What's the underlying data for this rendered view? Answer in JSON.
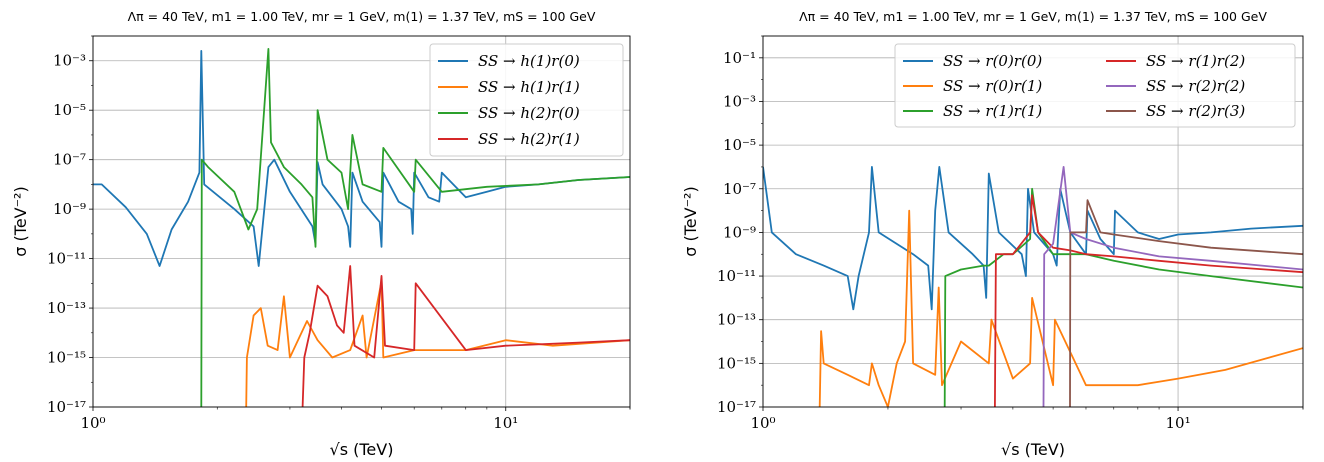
{
  "chart_data": [
    {
      "type": "line",
      "title": "Λπ = 40 TeV, m1 = 1.00 TeV, mr = 1 GeV, m(1) = 1.37 TeV, mS = 100 GeV",
      "xlabel": "√s (TeV)",
      "ylabel": "σ (TeV⁻²)",
      "xscale": "log",
      "yscale": "log",
      "xlim": [
        1,
        20
      ],
      "ylim": [
        1e-17,
        0.01
      ],
      "xticks": [
        {
          "v": 1,
          "label": "10⁰"
        },
        {
          "v": 10,
          "label": "10¹"
        }
      ],
      "yticks": [
        {
          "v": -17,
          "label": "10⁻¹⁷"
        },
        {
          "v": -15,
          "label": "10⁻¹⁵"
        },
        {
          "v": -13,
          "label": "10⁻¹³"
        },
        {
          "v": -11,
          "label": "10⁻¹¹"
        },
        {
          "v": -9,
          "label": "10⁻⁹"
        },
        {
          "v": -7,
          "label": "10⁻⁷"
        },
        {
          "v": -5,
          "label": "10⁻⁵"
        },
        {
          "v": -3,
          "label": "10⁻³"
        }
      ],
      "grid": true,
      "legend": "top-right",
      "legend_cols": 1,
      "series": [
        {
          "name": "SS → h(1)r(0)",
          "color": "#1f77b4",
          "points": [
            [
              1.0,
              1e-08
            ],
            [
              1.05,
              1e-08
            ],
            [
              1.2,
              1.2e-09
            ],
            [
              1.35,
              1e-10
            ],
            [
              1.45,
              5e-12
            ],
            [
              1.55,
              1.5e-10
            ],
            [
              1.7,
              2e-09
            ],
            [
              1.81,
              3e-08
            ],
            [
              1.83,
              0.0025
            ],
            [
              1.86,
              1e-08
            ],
            [
              2.2,
              1e-09
            ],
            [
              2.45,
              2e-10
            ],
            [
              2.52,
              5e-12
            ],
            [
              2.6,
              1e-09
            ],
            [
              2.66,
              5e-08
            ],
            [
              2.75,
              1e-07
            ],
            [
              3.0,
              5e-09
            ],
            [
              3.4,
              2e-10
            ],
            [
              3.46,
              4e-11
            ],
            [
              3.5,
              8e-08
            ],
            [
              3.6,
              1e-08
            ],
            [
              4.0,
              1e-09
            ],
            [
              4.15,
              2e-10
            ],
            [
              4.2,
              3e-11
            ],
            [
              4.25,
              3e-08
            ],
            [
              4.5,
              2e-09
            ],
            [
              4.95,
              3e-10
            ],
            [
              5.0,
              3e-11
            ],
            [
              5.05,
              3e-08
            ],
            [
              5.5,
              2e-09
            ],
            [
              5.9,
              1e-09
            ],
            [
              5.95,
              1e-10
            ],
            [
              6.0,
              3e-08
            ],
            [
              6.5,
              3e-09
            ],
            [
              6.9,
              2e-09
            ],
            [
              7.0,
              3e-08
            ],
            [
              8.0,
              3e-09
            ],
            [
              9.0,
              5e-09
            ],
            [
              10,
              8e-09
            ],
            [
              12,
              1e-08
            ],
            [
              15,
              1.5e-08
            ],
            [
              20,
              2e-08
            ]
          ]
        },
        {
          "name": "SS → h(1)r(1)",
          "color": "#ff7f0e",
          "points": [
            [
              2.35,
              1e-17
            ],
            [
              2.36,
              1e-15
            ],
            [
              2.45,
              5e-14
            ],
            [
              2.55,
              1e-13
            ],
            [
              2.65,
              3e-15
            ],
            [
              2.8,
              2e-15
            ],
            [
              2.9,
              3e-13
            ],
            [
              3.0,
              1e-15
            ],
            [
              3.3,
              3e-14
            ],
            [
              3.5,
              5e-15
            ],
            [
              3.8,
              1e-15
            ],
            [
              4.2,
              2e-15
            ],
            [
              4.5,
              5e-14
            ],
            [
              4.6,
              1e-15
            ],
            [
              5.0,
              1.2e-12
            ],
            [
              5.05,
              1e-15
            ],
            [
              6.0,
              2e-15
            ],
            [
              8.0,
              2e-15
            ],
            [
              10,
              5e-15
            ],
            [
              13,
              3e-15
            ],
            [
              20,
              5e-15
            ]
          ]
        },
        {
          "name": "SS → h(2)r(0)",
          "color": "#2ca02c",
          "points": [
            [
              1.83,
              1e-17
            ],
            [
              1.835,
              1e-07
            ],
            [
              1.9,
              5e-08
            ],
            [
              2.2,
              5e-09
            ],
            [
              2.38,
              1.5e-10
            ],
            [
              2.5,
              1e-09
            ],
            [
              2.66,
              0.003
            ],
            [
              2.7,
              5e-07
            ],
            [
              2.9,
              5e-08
            ],
            [
              3.2,
              1e-08
            ],
            [
              3.4,
              3e-09
            ],
            [
              3.46,
              3e-11
            ],
            [
              3.5,
              1e-05
            ],
            [
              3.7,
              1e-07
            ],
            [
              4.0,
              3e-08
            ],
            [
              4.15,
              1e-09
            ],
            [
              4.25,
              1e-06
            ],
            [
              4.5,
              1e-08
            ],
            [
              5.0,
              5e-09
            ],
            [
              5.05,
              3e-07
            ],
            [
              6.0,
              5e-09
            ],
            [
              6.05,
              1e-07
            ],
            [
              7.0,
              5e-09
            ],
            [
              9.0,
              8e-09
            ],
            [
              12,
              1e-08
            ],
            [
              15,
              1.5e-08
            ],
            [
              20,
              2e-08
            ]
          ]
        },
        {
          "name": "SS → h(2)r(1)",
          "color": "#d62728",
          "points": [
            [
              3.22,
              1e-17
            ],
            [
              3.25,
              1e-15
            ],
            [
              3.35,
              1e-14
            ],
            [
              3.5,
              8e-13
            ],
            [
              3.7,
              3e-13
            ],
            [
              3.9,
              2e-14
            ],
            [
              4.05,
              1e-14
            ],
            [
              4.2,
              5e-12
            ],
            [
              4.3,
              3e-15
            ],
            [
              4.8,
              1e-15
            ],
            [
              5.0,
              2e-12
            ],
            [
              5.1,
              3e-15
            ],
            [
              6.0,
              2e-15
            ],
            [
              6.05,
              1e-12
            ],
            [
              8.0,
              2e-15
            ],
            [
              10,
              3e-15
            ],
            [
              15,
              4e-15
            ],
            [
              20,
              5e-15
            ]
          ]
        }
      ]
    },
    {
      "type": "line",
      "title": "Λπ = 40 TeV, m1 = 1.00 TeV, mr = 1 GeV, m(1) = 1.37 TeV, mS = 100 GeV",
      "xlabel": "√s (TeV)",
      "ylabel": "σ (TeV⁻²)",
      "xscale": "log",
      "yscale": "log",
      "xlim": [
        1,
        20
      ],
      "ylim": [
        1e-17,
        1
      ],
      "xticks": [
        {
          "v": 1,
          "label": "10⁰"
        },
        {
          "v": 10,
          "label": "10¹"
        }
      ],
      "yticks": [
        {
          "v": -17,
          "label": "10⁻¹⁷"
        },
        {
          "v": -15,
          "label": "10⁻¹⁵"
        },
        {
          "v": -13,
          "label": "10⁻¹³"
        },
        {
          "v": -11,
          "label": "10⁻¹¹"
        },
        {
          "v": -9,
          "label": "10⁻⁹"
        },
        {
          "v": -7,
          "label": "10⁻⁷"
        },
        {
          "v": -5,
          "label": "10⁻⁵"
        },
        {
          "v": -3,
          "label": "10⁻³"
        },
        {
          "v": -1,
          "label": "10⁻¹"
        }
      ],
      "grid": true,
      "legend": "top-right",
      "legend_cols": 2,
      "series": [
        {
          "name": "SS → r(0)r(0)",
          "color": "#1f77b4",
          "points": [
            [
              1.0,
              1e-06
            ],
            [
              1.05,
              1e-09
            ],
            [
              1.2,
              1e-10
            ],
            [
              1.4,
              3e-11
            ],
            [
              1.6,
              1e-11
            ],
            [
              1.65,
              3e-13
            ],
            [
              1.7,
              1e-11
            ],
            [
              1.8,
              1e-09
            ],
            [
              1.83,
              1e-06
            ],
            [
              1.9,
              1e-09
            ],
            [
              2.3,
              1e-10
            ],
            [
              2.5,
              3e-11
            ],
            [
              2.55,
              3e-13
            ],
            [
              2.6,
              1e-08
            ],
            [
              2.66,
              1e-06
            ],
            [
              2.8,
              1e-09
            ],
            [
              3.2,
              1e-10
            ],
            [
              3.4,
              3e-11
            ],
            [
              3.45,
              1e-12
            ],
            [
              3.5,
              5e-07
            ],
            [
              3.7,
              1e-09
            ],
            [
              4.2,
              1e-10
            ],
            [
              4.3,
              1e-11
            ],
            [
              4.35,
              1e-07
            ],
            [
              4.5,
              1e-09
            ],
            [
              5.0,
              1e-10
            ],
            [
              5.1,
              3e-11
            ],
            [
              5.2,
              1e-07
            ],
            [
              5.5,
              1e-09
            ],
            [
              6.0,
              1e-10
            ],
            [
              6.05,
              1e-08
            ],
            [
              6.5,
              5e-10
            ],
            [
              7.0,
              1e-10
            ],
            [
              7.05,
              1e-08
            ],
            [
              8.0,
              1e-09
            ],
            [
              9.0,
              5e-10
            ],
            [
              10,
              8e-10
            ],
            [
              12,
              1e-09
            ],
            [
              15,
              1.5e-09
            ],
            [
              20,
              2e-09
            ]
          ]
        },
        {
          "name": "SS → r(0)r(1)",
          "color": "#ff7f0e",
          "points": [
            [
              1.37,
              1e-17
            ],
            [
              1.38,
              3e-14
            ],
            [
              1.4,
              1e-15
            ],
            [
              1.6,
              3e-16
            ],
            [
              1.8,
              1e-16
            ],
            [
              1.83,
              1e-15
            ],
            [
              1.9,
              1e-16
            ],
            [
              2.0,
              1e-17
            ],
            [
              2.1,
              1e-15
            ],
            [
              2.2,
              1e-14
            ],
            [
              2.25,
              1e-08
            ],
            [
              2.3,
              1e-15
            ],
            [
              2.6,
              3e-16
            ],
            [
              2.65,
              3e-12
            ],
            [
              2.7,
              1e-16
            ],
            [
              3.0,
              1e-14
            ],
            [
              3.5,
              1e-15
            ],
            [
              3.55,
              1e-13
            ],
            [
              4.0,
              2e-16
            ],
            [
              4.4,
              1e-15
            ],
            [
              4.45,
              1e-12
            ],
            [
              5.0,
              1e-16
            ],
            [
              5.05,
              1e-13
            ],
            [
              6.0,
              1e-16
            ],
            [
              8.0,
              1e-16
            ],
            [
              10,
              2e-16
            ],
            [
              13,
              5e-16
            ],
            [
              20,
              5e-15
            ]
          ]
        },
        {
          "name": "SS → r(1)r(1)",
          "color": "#2ca02c",
          "points": [
            [
              2.74,
              1e-17
            ],
            [
              2.75,
              1e-11
            ],
            [
              3.0,
              2e-11
            ],
            [
              3.4,
              3e-11
            ],
            [
              3.5,
              3e-11
            ],
            [
              3.8,
              1e-10
            ],
            [
              4.0,
              1e-10
            ],
            [
              4.4,
              5e-10
            ],
            [
              4.45,
              1e-07
            ],
            [
              4.6,
              1e-09
            ],
            [
              5.0,
              1e-10
            ],
            [
              6.0,
              1e-10
            ],
            [
              7.0,
              5e-11
            ],
            [
              9.0,
              2e-11
            ],
            [
              12,
              1e-11
            ],
            [
              20,
              3e-12
            ]
          ]
        },
        {
          "name": "SS → r(1)r(2)",
          "color": "#d62728",
          "points": [
            [
              3.62,
              1e-17
            ],
            [
              3.64,
              1e-10
            ],
            [
              4.0,
              1e-10
            ],
            [
              4.4,
              1e-09
            ],
            [
              4.45,
              5e-08
            ],
            [
              4.6,
              1e-09
            ],
            [
              5.0,
              2e-10
            ],
            [
              5.5,
              1.5e-10
            ],
            [
              6.0,
              1e-10
            ],
            [
              7.0,
              8e-11
            ],
            [
              9.0,
              5e-11
            ],
            [
              12,
              3e-11
            ],
            [
              20,
              1.5e-11
            ]
          ]
        },
        {
          "name": "SS → r(2)r(2)",
          "color": "#9467bd",
          "points": [
            [
              4.74,
              1e-17
            ],
            [
              4.76,
              1e-10
            ],
            [
              5.0,
              3e-10
            ],
            [
              5.3,
              1e-06
            ],
            [
              5.5,
              1e-09
            ],
            [
              6.0,
              5e-10
            ],
            [
              7.0,
              2e-10
            ],
            [
              9.0,
              8e-11
            ],
            [
              12,
              5e-11
            ],
            [
              20,
              2e-11
            ]
          ]
        },
        {
          "name": "SS → r(2)r(3)",
          "color": "#8c564b",
          "points": [
            [
              5.49,
              1e-17
            ],
            [
              5.5,
              1e-09
            ],
            [
              6.0,
              1e-09
            ],
            [
              6.05,
              3e-08
            ],
            [
              6.5,
              1e-09
            ],
            [
              7.0,
              8e-10
            ],
            [
              9.0,
              4e-10
            ],
            [
              12,
              2e-10
            ],
            [
              20,
              1e-10
            ]
          ]
        }
      ]
    }
  ]
}
